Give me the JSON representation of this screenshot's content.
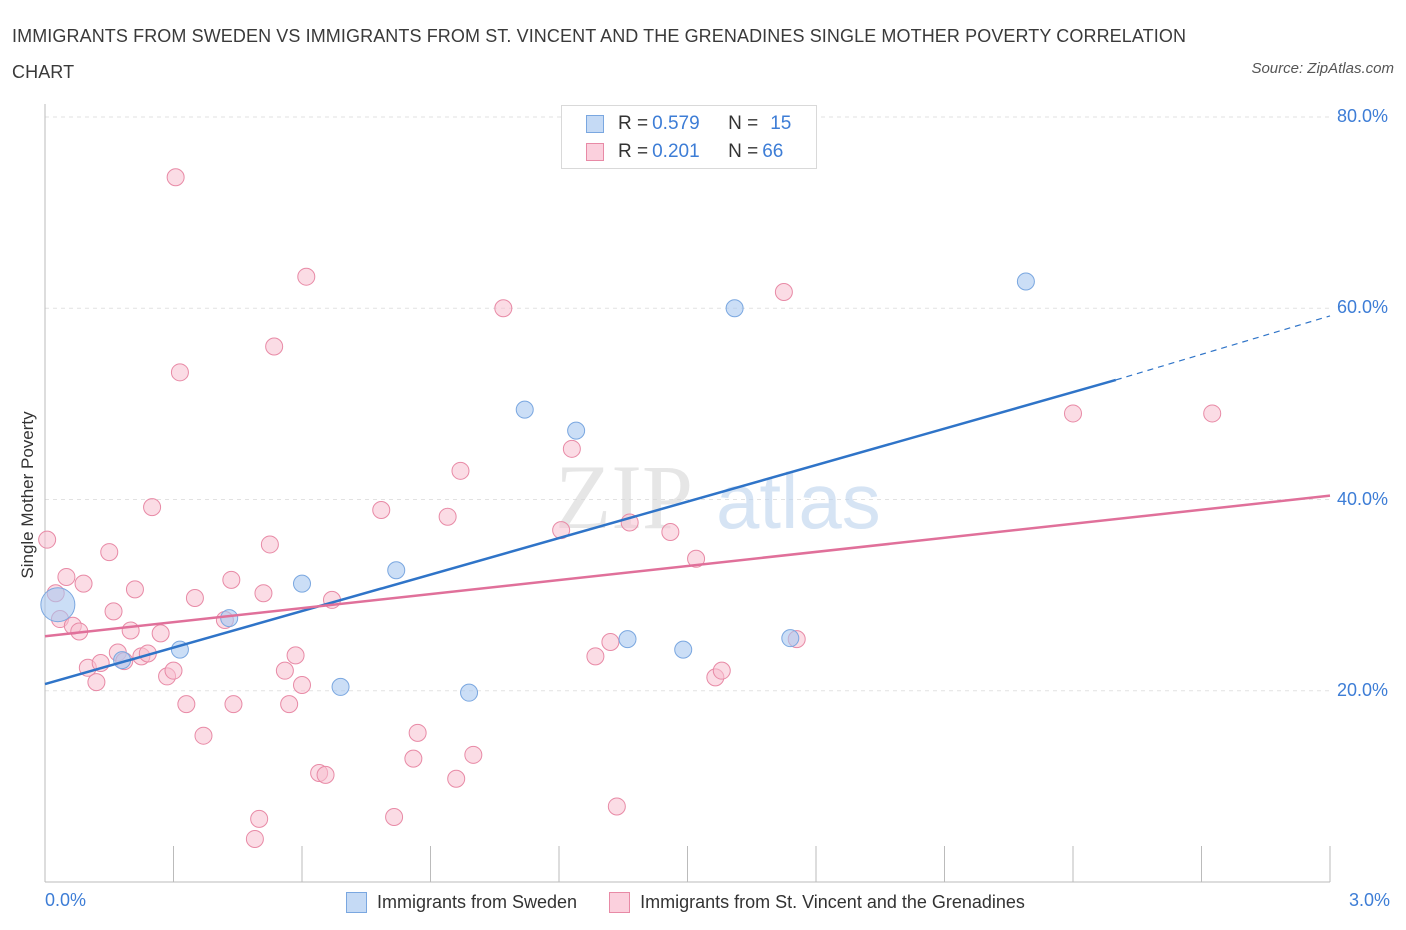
{
  "title": "IMMIGRANTS FROM SWEDEN VS IMMIGRANTS FROM ST. VINCENT AND THE GRENADINES SINGLE MOTHER POVERTY CORRELATION CHART",
  "source": "Source: ZipAtlas.com",
  "watermark": {
    "zip": "ZIP",
    "atlas": "atlas"
  },
  "colors": {
    "sweden": "#a9c8f0",
    "sweden_edge": "#7aa7e0",
    "sweden_line": "#2f74c8",
    "stvincent": "#f7bfd0",
    "stvincent_edge": "#e88aa6",
    "stvincent_line": "#e0709a",
    "accent_text": "#3d7dd6"
  },
  "legend": {
    "row1": {
      "r_label": "R = ",
      "r_value": "0.579",
      "n_label": "N = ",
      "n_value": "15"
    },
    "row2": {
      "r_label": "R = ",
      "r_value": "0.201",
      "n_label": "N = ",
      "n_value": "66"
    }
  },
  "bottom_legend": [
    {
      "label": "Immigrants from Sweden"
    },
    {
      "label": "Immigrants from St. Vincent and the Grenadines"
    }
  ],
  "chart_data": {
    "type": "scatter",
    "title": "IMMIGRANTS FROM SWEDEN VS IMMIGRANTS FROM ST. VINCENT AND THE GRENADINES SINGLE MOTHER POVERTY CORRELATION CHART",
    "xlabel": "",
    "ylabel": "Single Mother Poverty",
    "xlim": [
      0,
      3.0
    ],
    "ylim": [
      0,
      80
    ],
    "x_tick_labels": [
      "0.0%",
      "3.0%"
    ],
    "y_tick_labels": [
      "20.0%",
      "40.0%",
      "60.0%",
      "80.0%"
    ],
    "y_ticks": [
      20,
      40,
      60,
      80
    ],
    "grid": true,
    "series": [
      {
        "name": "Immigrants from Sweden",
        "R": 0.579,
        "N": 15,
        "trend": {
          "x": [
            0,
            2.5
          ],
          "y": [
            20.7,
            52.5
          ],
          "dashed_to": {
            "x": 3.0,
            "y": 59.2
          }
        },
        "points": [
          {
            "x": 0.03,
            "y": 29.0,
            "big": true
          },
          {
            "x": 0.18,
            "y": 23.2
          },
          {
            "x": 0.315,
            "y": 24.3
          },
          {
            "x": 0.43,
            "y": 27.6
          },
          {
            "x": 0.6,
            "y": 31.2
          },
          {
            "x": 0.69,
            "y": 20.4
          },
          {
            "x": 0.82,
            "y": 32.6
          },
          {
            "x": 0.99,
            "y": 19.8
          },
          {
            "x": 1.12,
            "y": 49.4
          },
          {
            "x": 1.24,
            "y": 47.2
          },
          {
            "x": 1.36,
            "y": 25.4
          },
          {
            "x": 1.49,
            "y": 24.3
          },
          {
            "x": 1.61,
            "y": 60.0
          },
          {
            "x": 1.74,
            "y": 25.5
          },
          {
            "x": 2.29,
            "y": 62.8
          }
        ]
      },
      {
        "name": "Immigrants from St. Vincent and the Grenadines",
        "R": 0.201,
        "N": 66,
        "trend": {
          "x": [
            0,
            3.0
          ],
          "y": [
            25.7,
            40.4
          ]
        },
        "points": [
          {
            "x": 0.005,
            "y": 35.8
          },
          {
            "x": 0.025,
            "y": 30.2
          },
          {
            "x": 0.035,
            "y": 27.5
          },
          {
            "x": 0.05,
            "y": 31.9
          },
          {
            "x": 0.065,
            "y": 26.8
          },
          {
            "x": 0.08,
            "y": 26.2
          },
          {
            "x": 0.09,
            "y": 31.2
          },
          {
            "x": 0.1,
            "y": 22.4
          },
          {
            "x": 0.12,
            "y": 20.9
          },
          {
            "x": 0.13,
            "y": 22.9
          },
          {
            "x": 0.15,
            "y": 34.5
          },
          {
            "x": 0.16,
            "y": 28.3
          },
          {
            "x": 0.17,
            "y": 24.0
          },
          {
            "x": 0.185,
            "y": 23.1
          },
          {
            "x": 0.2,
            "y": 26.3
          },
          {
            "x": 0.21,
            "y": 30.6
          },
          {
            "x": 0.225,
            "y": 23.6
          },
          {
            "x": 0.24,
            "y": 23.9
          },
          {
            "x": 0.25,
            "y": 39.2
          },
          {
            "x": 0.27,
            "y": 26.0
          },
          {
            "x": 0.285,
            "y": 21.5
          },
          {
            "x": 0.3,
            "y": 22.1
          },
          {
            "x": 0.305,
            "y": 73.7
          },
          {
            "x": 0.315,
            "y": 53.3
          },
          {
            "x": 0.33,
            "y": 18.6
          },
          {
            "x": 0.35,
            "y": 29.7
          },
          {
            "x": 0.37,
            "y": 15.3
          },
          {
            "x": 0.42,
            "y": 27.4
          },
          {
            "x": 0.435,
            "y": 31.6
          },
          {
            "x": 0.44,
            "y": 18.6
          },
          {
            "x": 0.49,
            "y": 4.5
          },
          {
            "x": 0.5,
            "y": 6.6
          },
          {
            "x": 0.51,
            "y": 30.2
          },
          {
            "x": 0.525,
            "y": 35.3
          },
          {
            "x": 0.535,
            "y": 56.0
          },
          {
            "x": 0.56,
            "y": 22.1
          },
          {
            "x": 0.57,
            "y": 18.6
          },
          {
            "x": 0.585,
            "y": 23.7
          },
          {
            "x": 0.6,
            "y": 20.6
          },
          {
            "x": 0.61,
            "y": 63.3
          },
          {
            "x": 0.64,
            "y": 11.4
          },
          {
            "x": 0.655,
            "y": 11.2
          },
          {
            "x": 0.67,
            "y": 29.5
          },
          {
            "x": 0.785,
            "y": 38.9
          },
          {
            "x": 0.815,
            "y": 6.8
          },
          {
            "x": 0.86,
            "y": 12.9
          },
          {
            "x": 0.87,
            "y": 15.6
          },
          {
            "x": 0.94,
            "y": 38.2
          },
          {
            "x": 0.96,
            "y": 10.8
          },
          {
            "x": 0.97,
            "y": 43.0
          },
          {
            "x": 1.0,
            "y": 13.3
          },
          {
            "x": 1.07,
            "y": 60.0
          },
          {
            "x": 1.205,
            "y": 36.8
          },
          {
            "x": 1.23,
            "y": 45.3
          },
          {
            "x": 1.285,
            "y": 23.6
          },
          {
            "x": 1.32,
            "y": 25.1
          },
          {
            "x": 1.335,
            "y": 7.9
          },
          {
            "x": 1.365,
            "y": 37.6
          },
          {
            "x": 1.46,
            "y": 36.6
          },
          {
            "x": 1.52,
            "y": 33.8
          },
          {
            "x": 1.565,
            "y": 21.4
          },
          {
            "x": 1.58,
            "y": 22.1
          },
          {
            "x": 1.725,
            "y": 61.7
          },
          {
            "x": 1.755,
            "y": 25.4
          },
          {
            "x": 2.4,
            "y": 49.0
          },
          {
            "x": 2.725,
            "y": 49.0
          }
        ]
      }
    ]
  }
}
